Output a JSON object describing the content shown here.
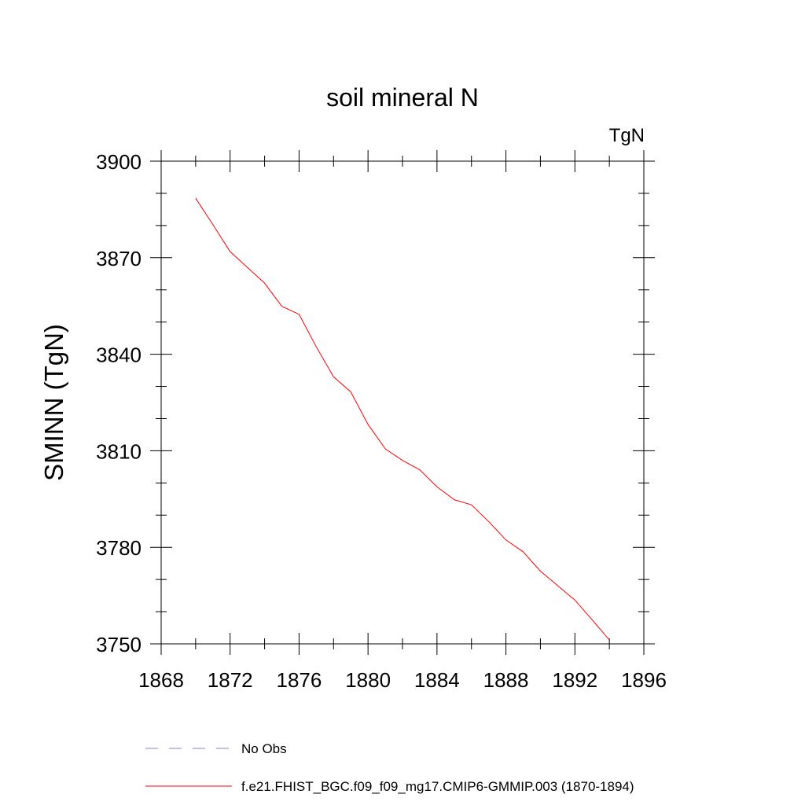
{
  "chart_data": {
    "type": "line",
    "title": "soil mineral N",
    "units_label": "TgN",
    "ylabel": "SMINN  (TgN)",
    "xlabel": "",
    "xlim": [
      1868,
      1896
    ],
    "ylim": [
      3750,
      3900
    ],
    "x_ticks": [
      1868,
      1872,
      1876,
      1880,
      1884,
      1888,
      1892,
      1896
    ],
    "y_ticks": [
      3750,
      3780,
      3810,
      3840,
      3870,
      3900
    ],
    "x_tick_labels": [
      "1868",
      "1872",
      "1876",
      "1880",
      "1884",
      "1888",
      "1892",
      "1896"
    ],
    "y_tick_labels": [
      "3750",
      "3780",
      "3810",
      "3840",
      "3870",
      "3900"
    ],
    "grid": false,
    "legend_position": "bottom",
    "series": [
      {
        "name": "f.e21.FHIST_BGC.f09_f09_mg17.CMIP6-GMMIP.003 (1870-1894)",
        "color": "#ff0000",
        "style": "solid",
        "x": [
          1870,
          1871,
          1872,
          1873,
          1874,
          1875,
          1876,
          1877,
          1878,
          1879,
          1880,
          1881,
          1882,
          1883,
          1884,
          1885,
          1886,
          1887,
          1888,
          1889,
          1890,
          1891,
          1892,
          1893,
          1894
        ],
        "values": [
          3888.5,
          3880.3,
          3871.9,
          3867.0,
          3862.1,
          3854.9,
          3852.4,
          3842.3,
          3833.0,
          3828.3,
          3818.2,
          3810.6,
          3807.0,
          3804.1,
          3798.8,
          3794.8,
          3793.2,
          3788.0,
          3782.3,
          3778.6,
          3772.6,
          3768.1,
          3763.6,
          3757.5,
          3751.2
        ]
      }
    ],
    "legend": [
      {
        "label": "No Obs",
        "color": "#8080c0",
        "style": "dashed"
      },
      {
        "label": "f.e21.FHIST_BGC.f09_f09_mg17.CMIP6-GMMIP.003 (1870-1894)",
        "color": "#ff0000",
        "style": "solid"
      }
    ]
  }
}
